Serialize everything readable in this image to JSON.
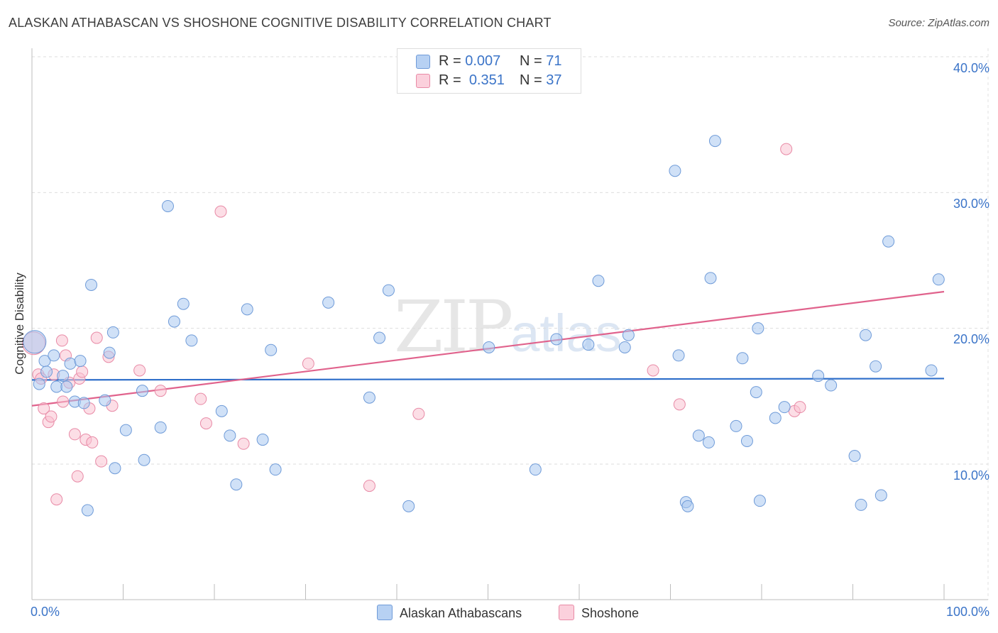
{
  "title": "ALASKAN ATHABASCAN VS SHOSHONE COGNITIVE DISABILITY CORRELATION CHART",
  "source": "Source: ZipAtlas.com",
  "watermark": {
    "main": "ZIP",
    "sub": "atlas"
  },
  "chart_data": {
    "type": "scatter",
    "title": "ALASKAN ATHABASCAN VS SHOSHONE COGNITIVE DISABILITY CORRELATION CHART",
    "xlabel": "",
    "ylabel": "Cognitive Disability",
    "xlim": [
      0,
      100
    ],
    "ylim": [
      1.5,
      42
    ],
    "x_tick_labels": [
      "0.0%",
      "100.0%"
    ],
    "y_ticks": [
      10,
      20,
      30,
      40
    ],
    "y_tick_labels": [
      "10.0%",
      "20.0%",
      "30.0%",
      "40.0%"
    ],
    "legend": {
      "position": "top-center",
      "entries": [
        {
          "name": "Alaskan Athabascans",
          "r_label": "R =",
          "r_value": "0.007",
          "n_label": "N =",
          "n_value": "71"
        },
        {
          "name": "Shoshone",
          "r_label": "R =",
          "r_value": "0.351",
          "n_label": "N =",
          "n_value": "37"
        }
      ]
    },
    "series": [
      {
        "name": "Alaskan Athabascans",
        "color": "#a9c8f0",
        "edge": "#6f9bd8",
        "trend": {
          "color": "#2f6fca",
          "x": [
            0,
            100
          ],
          "y": [
            16.2,
            16.3
          ]
        },
        "points": [
          [
            0.3,
            19.0
          ],
          [
            0.8,
            15.9
          ],
          [
            1.4,
            17.6
          ],
          [
            1.6,
            16.8
          ],
          [
            2.4,
            18.0
          ],
          [
            2.7,
            15.7
          ],
          [
            3.4,
            16.5
          ],
          [
            3.8,
            15.7
          ],
          [
            4.2,
            17.4
          ],
          [
            4.7,
            14.6
          ],
          [
            5.3,
            17.6
          ],
          [
            5.7,
            14.5
          ],
          [
            6.1,
            6.6
          ],
          [
            6.5,
            23.2
          ],
          [
            8.0,
            14.7
          ],
          [
            8.5,
            18.2
          ],
          [
            8.9,
            19.7
          ],
          [
            9.1,
            9.7
          ],
          [
            10.3,
            12.5
          ],
          [
            12.1,
            15.4
          ],
          [
            12.3,
            10.3
          ],
          [
            14.1,
            12.7
          ],
          [
            14.9,
            29.0
          ],
          [
            15.6,
            20.5
          ],
          [
            16.6,
            21.8
          ],
          [
            17.5,
            19.1
          ],
          [
            20.8,
            13.9
          ],
          [
            21.7,
            12.1
          ],
          [
            22.4,
            8.5
          ],
          [
            23.6,
            21.4
          ],
          [
            25.3,
            11.8
          ],
          [
            26.2,
            18.4
          ],
          [
            26.7,
            9.6
          ],
          [
            32.5,
            21.9
          ],
          [
            37.0,
            14.9
          ],
          [
            38.1,
            19.3
          ],
          [
            39.1,
            22.8
          ],
          [
            41.3,
            6.9
          ],
          [
            50.1,
            18.6
          ],
          [
            55.2,
            9.6
          ],
          [
            57.5,
            19.2
          ],
          [
            61.0,
            18.8
          ],
          [
            62.1,
            23.5
          ],
          [
            65.0,
            18.6
          ],
          [
            65.4,
            19.5
          ],
          [
            70.5,
            31.6
          ],
          [
            70.9,
            18.0
          ],
          [
            71.7,
            7.2
          ],
          [
            71.9,
            6.9
          ],
          [
            73.1,
            12.1
          ],
          [
            74.2,
            11.6
          ],
          [
            74.4,
            23.7
          ],
          [
            74.9,
            33.8
          ],
          [
            77.2,
            12.8
          ],
          [
            77.9,
            17.8
          ],
          [
            78.4,
            11.7
          ],
          [
            79.4,
            15.3
          ],
          [
            79.6,
            20.0
          ],
          [
            79.8,
            7.3
          ],
          [
            81.5,
            13.4
          ],
          [
            82.5,
            14.2
          ],
          [
            86.2,
            16.5
          ],
          [
            87.6,
            15.8
          ],
          [
            90.2,
            10.6
          ],
          [
            90.9,
            7.0
          ],
          [
            91.4,
            19.5
          ],
          [
            92.5,
            17.2
          ],
          [
            93.1,
            7.7
          ],
          [
            93.9,
            26.4
          ],
          [
            98.6,
            16.9
          ],
          [
            99.4,
            23.6
          ]
        ]
      },
      {
        "name": "Shoshone",
        "color": "#f9c3d2",
        "edge": "#e88aa6",
        "trend": {
          "color": "#e0628c",
          "x": [
            0,
            100
          ],
          "y": [
            14.3,
            22.7
          ]
        },
        "points": [
          [
            0.2,
            18.9
          ],
          [
            0.7,
            16.6
          ],
          [
            1.0,
            16.3
          ],
          [
            1.3,
            14.1
          ],
          [
            1.8,
            13.1
          ],
          [
            2.1,
            13.5
          ],
          [
            2.4,
            16.6
          ],
          [
            2.7,
            7.4
          ],
          [
            3.3,
            19.1
          ],
          [
            3.4,
            14.6
          ],
          [
            3.7,
            18.0
          ],
          [
            4.1,
            16.0
          ],
          [
            4.7,
            12.2
          ],
          [
            5.0,
            9.1
          ],
          [
            5.2,
            16.3
          ],
          [
            5.5,
            16.8
          ],
          [
            5.9,
            11.8
          ],
          [
            6.3,
            14.1
          ],
          [
            6.6,
            11.6
          ],
          [
            7.1,
            19.3
          ],
          [
            7.6,
            10.2
          ],
          [
            8.4,
            17.9
          ],
          [
            8.8,
            14.3
          ],
          [
            11.8,
            16.9
          ],
          [
            14.1,
            15.4
          ],
          [
            18.5,
            14.8
          ],
          [
            19.1,
            13.0
          ],
          [
            20.7,
            28.6
          ],
          [
            23.2,
            11.5
          ],
          [
            30.3,
            17.4
          ],
          [
            37.0,
            8.4
          ],
          [
            42.4,
            13.7
          ],
          [
            68.1,
            16.9
          ],
          [
            71.0,
            14.4
          ],
          [
            82.7,
            33.2
          ],
          [
            83.6,
            13.9
          ],
          [
            84.2,
            14.2
          ]
        ]
      }
    ]
  }
}
